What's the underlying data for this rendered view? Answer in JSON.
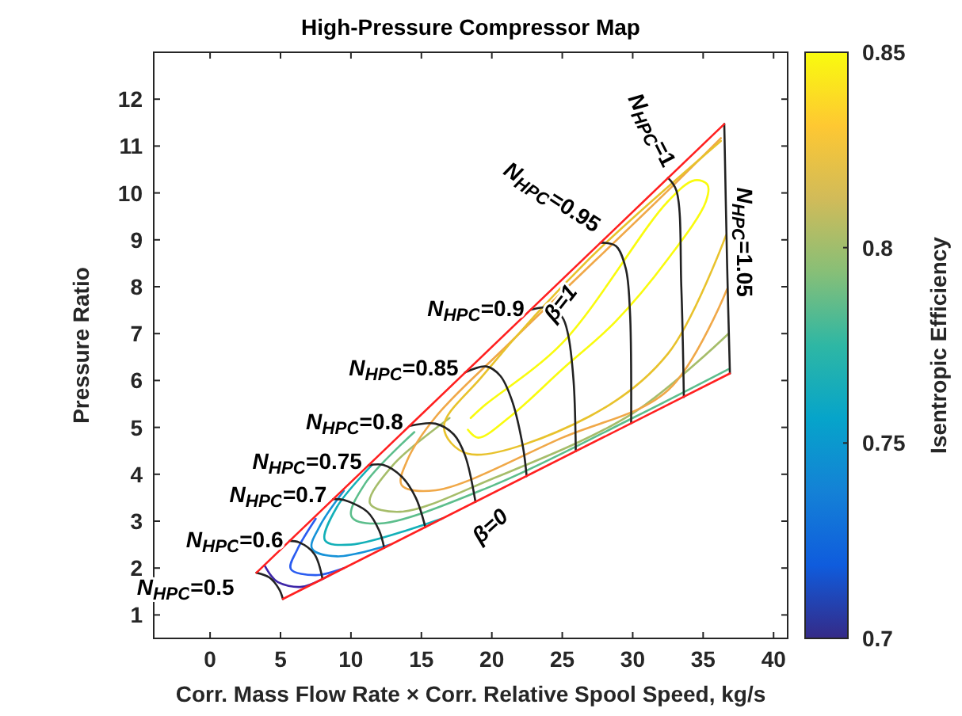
{
  "chart_data": {
    "type": "line",
    "title": "High-Pressure Compressor Map",
    "xlabel": "Corr. Mass Flow Rate × Corr. Relative Spool Speed, kg/s",
    "ylabel": "Pressure Ratio",
    "clabel": "Isentropic Efficiency",
    "xlim": [
      -4,
      41
    ],
    "ylim": [
      0.5,
      13
    ],
    "xticks": [
      0,
      5,
      10,
      15,
      20,
      25,
      30,
      35,
      40
    ],
    "yticks": [
      1,
      2,
      3,
      4,
      5,
      6,
      7,
      8,
      9,
      10,
      11,
      12
    ],
    "clim": [
      0.7,
      0.85
    ],
    "cticks": [
      0.7,
      0.75,
      0.8,
      0.85
    ],
    "grid": false,
    "series": [
      {
        "color": "#3e26a8",
        "x": [
          3.86,
          4.3,
          4.8,
          6.5,
          8.5
        ],
        "values": [
          2.06,
          1.85,
          1.7,
          1.6,
          1.85
        ]
      },
      {
        "color": "#2a5cf0",
        "x": [
          7.5,
          6.2,
          5.73,
          7.5,
          9.5
        ],
        "values": [
          3.05,
          2.4,
          1.98,
          1.85,
          2.0
        ]
      },
      {
        "color": "#1692d8",
        "x": [
          9.5,
          7.8,
          7.23,
          9.0,
          12.8
        ],
        "values": [
          3.65,
          2.9,
          2.42,
          2.25,
          2.5
        ]
      },
      {
        "color": "#14b0b8",
        "x": [
          11.5,
          9.0,
          8.16,
          10.0,
          16.5
        ],
        "values": [
          4.2,
          3.3,
          2.59,
          2.5,
          3.06
        ]
      },
      {
        "color": "#5cbe8c",
        "x": [
          14.5,
          11.0,
          10.04,
          12.0,
          20.0,
          30.0,
          36.8
        ],
        "values": [
          4.9,
          3.8,
          3.1,
          2.95,
          3.75,
          5.2,
          6.24
        ]
      },
      {
        "color": "#a6bd6a",
        "x": [
          17.0,
          13.0,
          11.35,
          13.5,
          20.0,
          30.0,
          36.8
        ],
        "values": [
          5.2,
          4.2,
          3.38,
          3.2,
          3.9,
          5.3,
          7.0
        ]
      },
      {
        "color": "#f0a848",
        "x": [
          36.26,
          32.5,
          21.27,
          16.03,
          14.0,
          13.6,
          16.03,
          25.0,
          32.5,
          36.7
        ],
        "values": [
          11.17,
          10.05,
          6.8,
          5.23,
          4.3,
          3.77,
          3.66,
          4.78,
          5.79,
          7.95
        ]
      },
      {
        "color": "#e8c22c",
        "x": [
          36.26,
          26.9,
          19.4,
          16.6,
          18.28,
          26.9,
          32.5,
          36.63
        ],
        "values": [
          11.11,
          8.59,
          6.12,
          5.0,
          4.44,
          5.23,
          6.57,
          9.1
        ]
      },
      {
        "color": "#f9fb0e",
        "x": [
          18.5,
          19.4,
          25.0,
          32.5,
          34.4,
          35.3,
          35.2,
          32.5,
          28.76,
          25.0,
          21.3,
          19.03,
          18.3
        ],
        "values": [
          5.2,
          5.45,
          6.8,
          9.82,
          10.27,
          10.18,
          9.82,
          8.59,
          7.25,
          6.24,
          5.23,
          4.78,
          4.95
        ]
      },
      {
        "color": "#222222",
        "x": [
          3.29,
          4.2,
          4.9,
          5.17
        ],
        "values": [
          1.9,
          1.8,
          1.55,
          1.34
        ]
      },
      {
        "color": "#222222",
        "x": [
          5.65,
          6.3,
          7.4,
          7.98
        ],
        "values": [
          2.58,
          2.55,
          2.3,
          1.77
        ]
      },
      {
        "color": "#222222",
        "x": [
          8.73,
          9.5,
          11.16,
          12.0,
          12.36
        ],
        "values": [
          3.47,
          3.45,
          3.2,
          2.8,
          2.43
        ]
      },
      {
        "color": "#222222",
        "x": [
          11.24,
          12.3,
          13.6,
          14.6,
          15.28
        ],
        "values": [
          4.19,
          4.2,
          3.95,
          3.5,
          2.87
        ]
      },
      {
        "color": "#222222",
        "x": [
          14.16,
          16.0,
          17.3,
          18.1,
          18.84
        ],
        "values": [
          5.03,
          5.08,
          4.85,
          4.4,
          3.41
        ]
      },
      {
        "color": "#222222",
        "x": [
          18.09,
          19.6,
          20.6,
          21.4,
          22.2,
          22.47
        ],
        "values": [
          6.17,
          6.3,
          6.1,
          5.6,
          4.6,
          3.96
        ]
      },
      {
        "color": "#222222",
        "x": [
          22.77,
          24.1,
          25.0,
          25.4,
          25.8,
          25.96
        ],
        "values": [
          7.51,
          7.55,
          7.35,
          7.0,
          6.0,
          4.49
        ]
      },
      {
        "color": "#222222",
        "x": [
          27.72,
          28.8,
          29.5,
          29.8,
          29.89
        ],
        "values": [
          8.94,
          8.87,
          8.4,
          7.5,
          5.09
        ]
      },
      {
        "color": "#222222",
        "x": [
          32.51,
          33.1,
          33.45,
          33.63
        ],
        "values": [
          10.32,
          10.05,
          8.0,
          5.65
        ]
      },
      {
        "color": "#222222",
        "x": [
          36.5,
          36.7,
          36.9
        ],
        "values": [
          11.47,
          8.5,
          6.15
        ]
      },
      {
        "color": "#ff2020",
        "x": [
          3.29,
          36.5
        ],
        "values": [
          1.9,
          11.47
        ]
      },
      {
        "color": "#ff2020",
        "x": [
          5.17,
          36.9
        ],
        "values": [
          1.34,
          6.15
        ]
      }
    ],
    "annotations": [
      {
        "text": "N$_{HPC}$=0.5",
        "x": 3.29,
        "y": 1.9
      },
      {
        "text": "N$_{HPC}$=0.6",
        "x": 5.65,
        "y": 2.58
      },
      {
        "text": "N$_{HPC}$=0.7",
        "x": 8.73,
        "y": 3.47
      },
      {
        "text": "N$_{HPC}$=0.75",
        "x": 11.24,
        "y": 4.19
      },
      {
        "text": "N$_{HPC}$=0.8",
        "x": 14.16,
        "y": 5.03
      },
      {
        "text": "N$_{HPC}$=0.85",
        "x": 18.09,
        "y": 6.17
      },
      {
        "text": "N$_{HPC}$=0.9",
        "x": 22.77,
        "y": 7.51
      },
      {
        "text": "N$_{HPC}$=0.95",
        "x": 27.72,
        "y": 8.94
      },
      {
        "text": "N$_{HPC}$=1",
        "x": 32.51,
        "y": 10.32
      },
      {
        "text": "N$_{HPC}$=1.05",
        "x": 36.5,
        "y": 11.47
      },
      {
        "text": "β=1",
        "x": 25.5,
        "y": 8.3
      },
      {
        "text": "β=0",
        "x": 20.0,
        "y": 3.59
      }
    ]
  }
}
